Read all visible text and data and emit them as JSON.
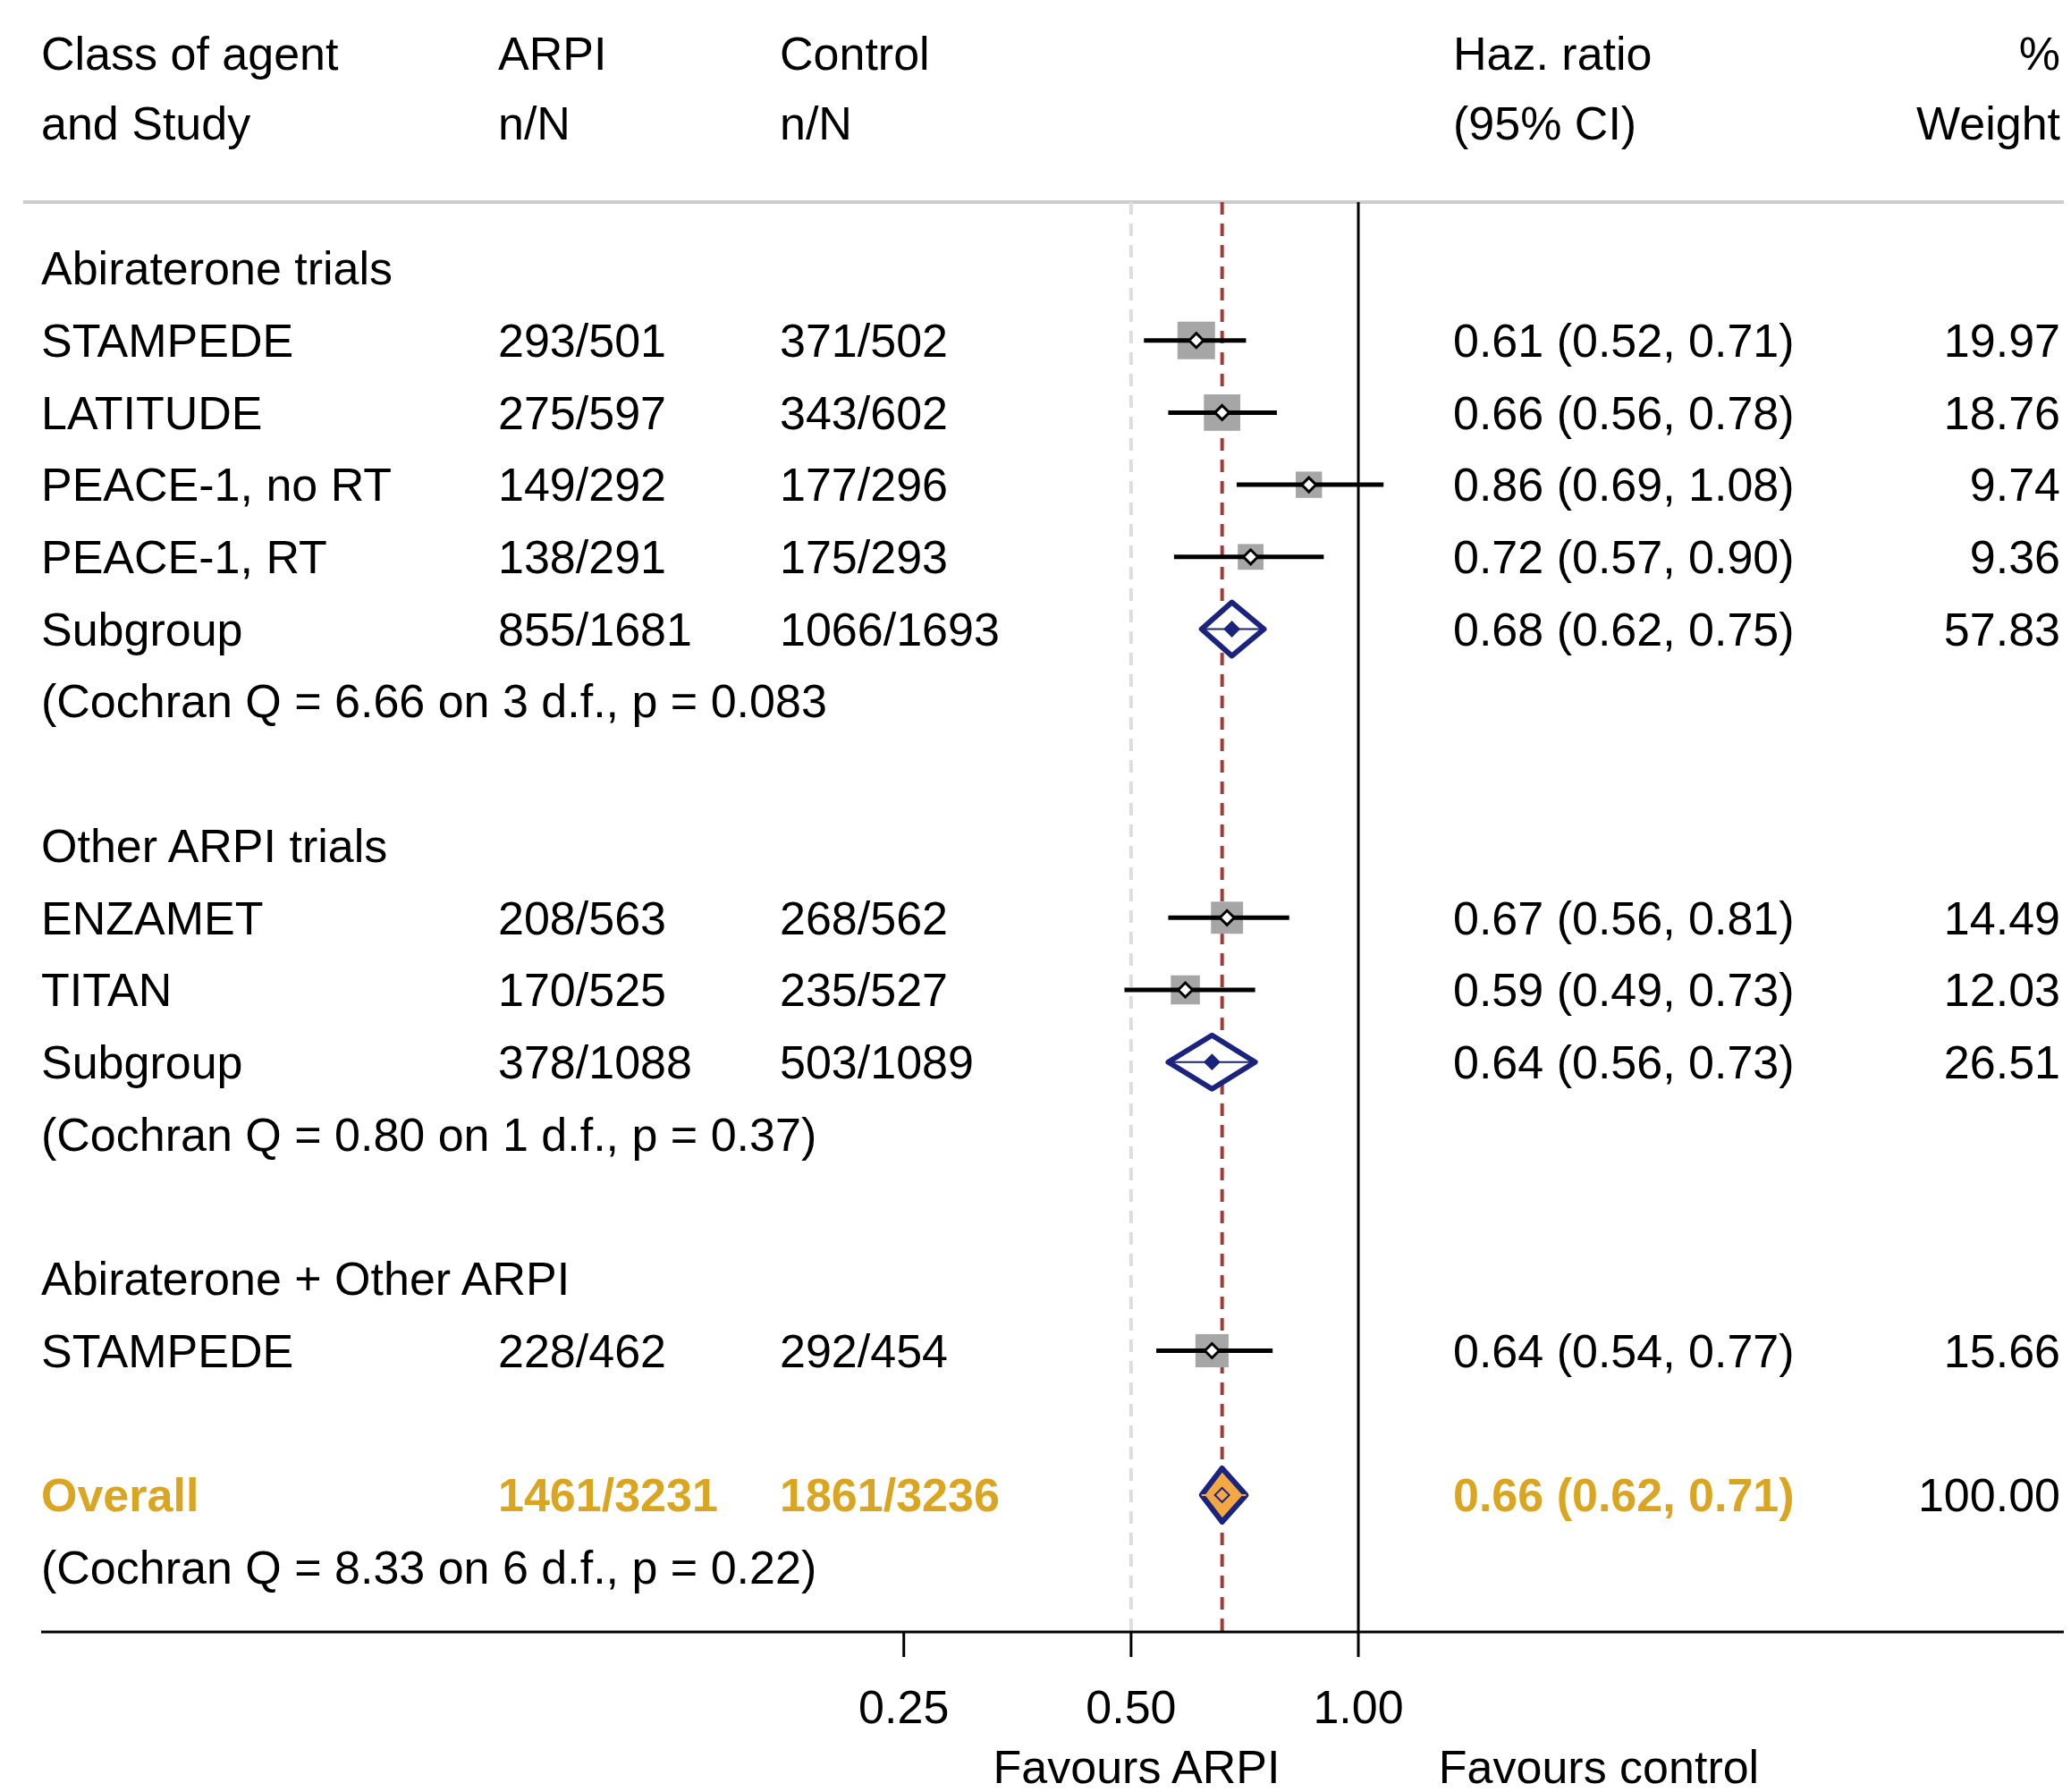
{
  "chart_data": {
    "type": "scatter",
    "orientation": "horizontal",
    "log": "x",
    "ylabel": "Class of agent\nand Study",
    "categories": [
      "Abiraterone trials",
      "STAMPEDE",
      "LATITUDE",
      "PEACE-1, no RT",
      "PEACE-1, RT",
      "Subgroup",
      "(Cochran Q = 6.66 on 3 d.f., p = 0.083",
      null,
      "Other ARPI trials",
      "ENZAMET",
      "TITAN",
      "Subgroup",
      "(Cochran Q = 0.80 on 1 d.f., p = 0.37)",
      null,
      "Abiraterone + Other ARPI",
      "STAMPEDE",
      null,
      "Overall",
      "(Cochran Q = 8.33 on 6 d.f., p = 0.22)"
    ],
    "xlim": [
      0.018,
      8.6
    ],
    "xticks": [
      0.25,
      {
        "value": 0.5,
        "label": "0.50"
      },
      {
        "value": 1,
        "label": "1.00"
      }
    ],
    "series": [
      {
        "name": "ARPI\nn/N",
        "type": "other",
        "values": [
          null,
          null,
          null,
          null,
          null,
          null,
          null,
          null,
          null,
          null,
          null,
          null,
          null,
          null,
          null,
          null,
          null,
          null,
          null
        ],
        "value_labels": [
          null,
          "293/501",
          "275/597",
          "149/292",
          "138/291",
          "855/1681",
          null,
          null,
          null,
          "208/563",
          "170/525",
          "378/1088",
          null,
          null,
          null,
          "228/462",
          null,
          "1461/3231",
          null
        ],
        "colors": [
          null,
          null,
          null,
          null,
          null,
          null,
          null,
          null,
          null,
          null,
          null,
          null,
          null,
          null,
          null,
          null,
          null,
          "#daa520",
          null
        ]
      },
      {
        "name": "Control\nn/N",
        "type": "other",
        "values": [
          null,
          null,
          null,
          null,
          null,
          null,
          null,
          null,
          null,
          null,
          null,
          null,
          null,
          null,
          null,
          null,
          null,
          null,
          null
        ],
        "value_labels": [
          null,
          "371/502",
          "343/602",
          "177/296",
          "175/293",
          "1066/1693",
          null,
          null,
          null,
          "268/562",
          "235/527",
          "503/1089",
          null,
          null,
          null,
          "292/454",
          null,
          "1861/3236",
          null
        ],
        "colors": [
          null,
          null,
          null,
          null,
          null,
          null,
          null,
          null,
          null,
          null,
          null,
          null,
          null,
          null,
          null,
          null,
          null,
          "#daa520",
          null
        ]
      },
      {
        "type": "scatter",
        "marker": "square",
        "color": "#a6a6a6",
        "values": [
          null,
          0.61,
          0.66,
          0.86,
          0.72,
          null,
          null,
          null,
          null,
          0.67,
          0.59,
          null,
          null,
          null,
          null,
          0.64,
          null,
          null,
          null
        ],
        "sizes": [
          null,
          1,
          0.94,
          0.49,
          0.47,
          null,
          null,
          null,
          null,
          0.73,
          0.6,
          null,
          null,
          null,
          null,
          0.78,
          null,
          null,
          null
        ]
      },
      {
        "type": "scatter",
        "marker": "diamond",
        "color": "#000000",
        "values": [
          null,
          0.61,
          0.66,
          0.86,
          0.72,
          null,
          null,
          null,
          null,
          0.67,
          0.59,
          null,
          null,
          null,
          null,
          0.64,
          null,
          null,
          null
        ],
        "errors": [
          null,
          [
            0.52,
            0.71
          ],
          [
            0.56,
            0.78
          ],
          [
            0.69,
            1.08
          ],
          [
            0.57,
            0.9
          ],
          null,
          null,
          null,
          null,
          [
            0.56,
            0.81
          ],
          [
            0.49,
            0.73
          ],
          null,
          null,
          null,
          null,
          [
            0.54,
            0.77
          ],
          null,
          null,
          null
        ]
      },
      {
        "type": "scatter",
        "marker": "diamond",
        "color": "#1a237e",
        "values": [
          null,
          null,
          null,
          null,
          null,
          0.68,
          null,
          null,
          null,
          null,
          null,
          0.64,
          null,
          null,
          null,
          null,
          null,
          null,
          null
        ],
        "errors": [
          null,
          null,
          null,
          null,
          null,
          [
            0.62,
            0.75
          ],
          null,
          null,
          null,
          null,
          null,
          [
            0.56,
            0.73
          ],
          null,
          null,
          null,
          null,
          null,
          null,
          null
        ]
      },
      {
        "type": "scatter",
        "marker": "diamond",
        "color": "#f5a742",
        "values": [
          null,
          null,
          null,
          null,
          null,
          null,
          null,
          null,
          null,
          null,
          null,
          null,
          null,
          null,
          null,
          null,
          null,
          0.66,
          null
        ],
        "errors": [
          null,
          null,
          null,
          null,
          null,
          null,
          null,
          null,
          null,
          null,
          null,
          null,
          null,
          null,
          null,
          null,
          null,
          [
            0.62,
            0.71
          ],
          null
        ]
      },
      {
        "name": "Haz. ratio\n(95% CI)",
        "type": "other",
        "values": [
          null,
          null,
          null,
          null,
          null,
          null,
          null,
          null,
          null,
          null,
          null,
          null,
          null,
          null,
          null,
          null,
          null,
          null,
          null
        ],
        "value_labels": [
          null,
          "0.61 (0.52, 0.71)",
          "0.66 (0.56, 0.78)",
          "0.86 (0.69, 1.08)",
          "0.72 (0.57, 0.90)",
          "0.68 (0.62, 0.75)",
          null,
          null,
          null,
          "0.67 (0.56, 0.81)",
          "0.59 (0.49, 0.73)",
          "0.64 (0.56, 0.73)",
          null,
          null,
          null,
          "0.64 (0.54, 0.77)",
          null,
          "0.66 (0.62, 0.71)",
          null
        ],
        "colors": [
          null,
          null,
          null,
          null,
          null,
          null,
          null,
          null,
          null,
          null,
          null,
          null,
          null,
          null,
          null,
          null,
          null,
          "#daa520",
          null
        ]
      },
      {
        "name": "%\nWeight",
        "type": "other",
        "values": [
          null,
          null,
          null,
          null,
          null,
          null,
          null,
          null,
          null,
          null,
          null,
          null,
          null,
          null,
          null,
          null,
          null,
          null,
          null
        ],
        "value_labels": [
          null,
          "19.97",
          "18.76",
          "9.74",
          "9.36",
          "57.83",
          null,
          null,
          null,
          "14.49",
          "12.03",
          "26.51",
          null,
          null,
          null,
          "15.66",
          null,
          "100.00",
          null
        ]
      }
    ],
    "ref_lines": [
      {
        "axis": "x",
        "value": 0.5,
        "color": "#dddddd",
        "line_style": "dashed"
      },
      {
        "axis": "x",
        "value": 1,
        "color": "#000000",
        "line_style": "solid"
      },
      {
        "axis": "x",
        "value": 0.66,
        "color": "#a33a3a",
        "line_style": "dashed"
      }
    ],
    "annotations": [
      "Favours ARPI",
      "Favours control"
    ]
  }
}
